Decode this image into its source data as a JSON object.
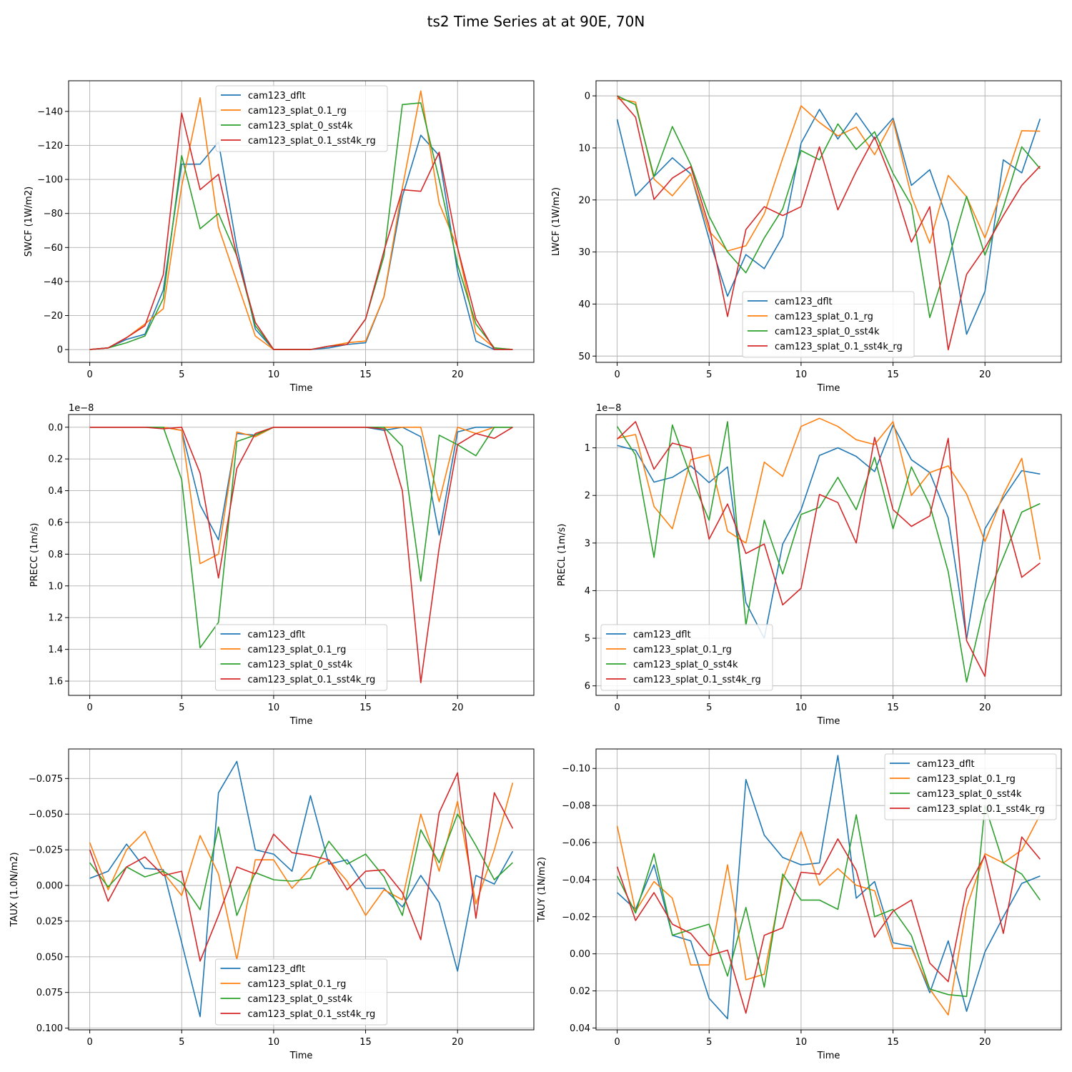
{
  "title": "ts2 Time Series at at 90E, 70N",
  "colors": {
    "cam123_dflt": "#1f77b4",
    "cam123_splat_0.1_rg": "#ff7f0e",
    "cam123_splat_0_sst4k": "#2ca02c",
    "cam123_splat_0.1_sst4k_rg": "#d62728"
  },
  "chart_data": [
    {
      "type": "line",
      "xlabel": "Time",
      "ylabel": "SWCF (1W/m2)",
      "xlim": [
        -1.15,
        24.15
      ],
      "ylim": [
        7.5,
        -158
      ],
      "xticks": [
        0,
        5,
        10,
        15,
        20
      ],
      "xtick_labels": [
        "0",
        "5",
        "10",
        "15",
        "20"
      ],
      "yticks": [
        0,
        -20,
        -40,
        -60,
        -80,
        -100,
        -120,
        -140
      ],
      "ytick_labels": [
        "0",
        "−20",
        "−40",
        "−60",
        "−80",
        "−100",
        "−120",
        "−140"
      ],
      "offset_label": "",
      "legend_loc": "upper-center",
      "x": [
        0,
        1,
        2,
        3,
        4,
        5,
        6,
        7,
        8,
        9,
        10,
        11,
        12,
        13,
        14,
        15,
        16,
        17,
        18,
        19,
        20,
        21,
        22,
        23
      ],
      "series": [
        {
          "name": "cam123_dflt",
          "values": [
            0,
            -1,
            -6,
            -9,
            -35,
            -109,
            -109,
            -122,
            -60,
            -12,
            0,
            0,
            0,
            -1,
            -3,
            -4,
            -31,
            -90,
            -126,
            -114,
            -46,
            -5,
            0,
            0
          ]
        },
        {
          "name": "cam123_splat_0.1_rg",
          "values": [
            0,
            -1,
            -7,
            -15,
            -24,
            -96,
            -148,
            -72,
            -40,
            -8,
            0,
            0,
            0,
            -2,
            -4,
            -5,
            -31,
            -95,
            -152,
            -86,
            -60,
            -10,
            -1,
            0
          ]
        },
        {
          "name": "cam123_splat_0_sst4k",
          "values": [
            0,
            -1,
            -4,
            -8,
            -30,
            -114,
            -71,
            -80,
            -55,
            -14,
            0,
            0,
            0,
            -2,
            -3,
            -18,
            -55,
            -144,
            -145,
            -100,
            -50,
            -15,
            -1,
            0
          ]
        },
        {
          "name": "cam123_splat_0.1_sst4k_rg",
          "values": [
            0,
            -1,
            -7,
            -14,
            -44,
            -139,
            -94,
            -103,
            -55,
            -16,
            0,
            0,
            0,
            -2,
            -3,
            -18,
            -58,
            -94,
            -93,
            -116,
            -60,
            -18,
            0,
            0
          ]
        }
      ]
    },
    {
      "type": "line",
      "xlabel": "Time",
      "ylabel": "LWCF (1W/m2)",
      "xlim": [
        -1.15,
        24.15
      ],
      "ylim": [
        51.2,
        -2.9
      ],
      "xticks": [
        0,
        5,
        10,
        15,
        20
      ],
      "xtick_labels": [
        "0",
        "5",
        "10",
        "15",
        "20"
      ],
      "yticks": [
        0,
        10,
        20,
        30,
        40,
        50
      ],
      "ytick_labels": [
        "0",
        "10",
        "20",
        "30",
        "40",
        "50"
      ],
      "offset_label": "",
      "legend_loc": "lower-center",
      "x": [
        0,
        1,
        2,
        3,
        4,
        5,
        6,
        7,
        8,
        9,
        10,
        11,
        12,
        13,
        14,
        15,
        16,
        17,
        18,
        19,
        20,
        21,
        22,
        23
      ],
      "series": [
        {
          "name": "cam123_dflt",
          "values": [
            4.5,
            19.2,
            15.5,
            11.9,
            15.0,
            27.5,
            38.5,
            30.5,
            33.2,
            27.0,
            9.1,
            2.6,
            8.3,
            3.3,
            8.3,
            4.3,
            17.2,
            14.2,
            24.2,
            45.8,
            37.6,
            12.3,
            14.8,
            4.4
          ]
        },
        {
          "name": "cam123_splat_0.1_rg",
          "values": [
            0.5,
            1.2,
            16.0,
            19.2,
            15.0,
            26.0,
            29.8,
            28.8,
            22.7,
            12.0,
            1.9,
            5.1,
            7.7,
            6.0,
            11.3,
            4.7,
            19.3,
            28.3,
            15.3,
            19.4,
            27.3,
            17.4,
            6.7,
            6.8
          ]
        },
        {
          "name": "cam123_splat_0_sst4k",
          "values": [
            0,
            1.7,
            15.5,
            5.9,
            13.2,
            23.1,
            30.0,
            34.0,
            27.3,
            21.7,
            10.5,
            12.3,
            5.4,
            10.3,
            6.9,
            14.9,
            21.0,
            42.6,
            31.5,
            19.3,
            30.6,
            21.4,
            9.8,
            14.0
          ]
        },
        {
          "name": "cam123_splat_0.1_sst4k_rg",
          "values": [
            0,
            4.1,
            19.9,
            15.8,
            13.6,
            25.0,
            42.4,
            25.7,
            21.3,
            23.0,
            21.3,
            9.8,
            21.9,
            14.5,
            7.9,
            16.8,
            28.1,
            21.3,
            48.8,
            34.3,
            29.2,
            23.0,
            17.2,
            13.5
          ]
        }
      ]
    },
    {
      "type": "line",
      "xlabel": "Time",
      "ylabel": "PRECC (1m/s)",
      "xlim": [
        -1.15,
        24.15
      ],
      "ylim": [
        1.69,
        -0.08
      ],
      "xticks": [
        0,
        5,
        10,
        15,
        20
      ],
      "xtick_labels": [
        "0",
        "5",
        "10",
        "15",
        "20"
      ],
      "yticks": [
        0.0,
        0.2,
        0.4,
        0.6,
        0.8,
        1.0,
        1.2,
        1.4,
        1.6
      ],
      "ytick_labels": [
        "0.0",
        "0.2",
        "0.4",
        "0.6",
        "0.8",
        "1.0",
        "1.2",
        "1.4",
        "1.6"
      ],
      "offset_label": "1e−8",
      "legend_loc": "lower-center",
      "x": [
        0,
        1,
        2,
        3,
        4,
        5,
        6,
        7,
        8,
        9,
        10,
        11,
        12,
        13,
        14,
        15,
        16,
        17,
        18,
        19,
        20,
        21,
        22,
        23
      ],
      "series": [
        {
          "name": "cam123_dflt",
          "values": [
            0,
            0,
            0,
            0,
            0,
            0.02,
            0.49,
            0.71,
            0.04,
            0.05,
            0,
            0,
            0,
            0,
            0,
            0,
            0.02,
            0,
            0.06,
            0.68,
            0.03,
            0,
            0,
            0
          ]
        },
        {
          "name": "cam123_splat_0.1_rg",
          "values": [
            0,
            0,
            0,
            0,
            0,
            0.02,
            0.86,
            0.8,
            0.03,
            0.06,
            0,
            0,
            0,
            0,
            0,
            0,
            0,
            0,
            0,
            0.47,
            0,
            0.04,
            0,
            0
          ]
        },
        {
          "name": "cam123_splat_0_sst4k",
          "values": [
            0,
            0,
            0,
            0,
            0,
            0.33,
            1.39,
            1.23,
            0.09,
            0.05,
            0,
            0,
            0,
            0,
            0,
            0,
            0,
            0.12,
            0.97,
            0.05,
            0.11,
            0.18,
            0,
            0
          ]
        },
        {
          "name": "cam123_splat_0.1_sst4k_rg",
          "values": [
            0,
            0,
            0,
            0,
            0.01,
            0,
            0.29,
            0.95,
            0.26,
            0.04,
            0,
            0,
            0,
            0,
            0,
            0,
            0.01,
            0.4,
            1.61,
            0.76,
            0.11,
            0.04,
            0.07,
            0
          ]
        }
      ]
    },
    {
      "type": "line",
      "xlabel": "Time",
      "ylabel": "PRECL (1m/s)",
      "xlim": [
        -1.15,
        24.15
      ],
      "ylim": [
        6.2,
        0.3
      ],
      "xticks": [
        0,
        5,
        10,
        15,
        20
      ],
      "xtick_labels": [
        "0",
        "5",
        "10",
        "15",
        "20"
      ],
      "yticks": [
        1,
        2,
        3,
        4,
        5,
        6
      ],
      "ytick_labels": [
        "1",
        "2",
        "3",
        "4",
        "5",
        "6"
      ],
      "offset_label": "1e−8",
      "legend_loc": "lower-left",
      "x": [
        0,
        1,
        2,
        3,
        4,
        5,
        6,
        7,
        8,
        9,
        10,
        11,
        12,
        13,
        14,
        15,
        16,
        17,
        18,
        19,
        20,
        21,
        22,
        23
      ],
      "series": [
        {
          "name": "cam123_dflt",
          "values": [
            0.95,
            1.05,
            1.72,
            1.62,
            1.38,
            1.73,
            1.4,
            4.25,
            5.0,
            3.02,
            2.3,
            1.16,
            1.0,
            1.18,
            1.5,
            0.52,
            1.25,
            1.52,
            2.47,
            5.02,
            2.7,
            2.05,
            1.48,
            1.55
          ]
        },
        {
          "name": "cam123_splat_0.1_rg",
          "values": [
            0.8,
            0.72,
            2.23,
            2.7,
            1.25,
            1.15,
            2.75,
            3.0,
            1.3,
            1.6,
            0.55,
            0.38,
            0.55,
            0.83,
            0.93,
            0.45,
            2.0,
            1.52,
            1.38,
            1.97,
            2.97,
            1.98,
            1.22,
            3.35
          ]
        },
        {
          "name": "cam123_splat_0_sst4k",
          "values": [
            0.55,
            1.15,
            3.3,
            0.52,
            1.6,
            2.52,
            0.45,
            4.73,
            2.52,
            3.65,
            2.4,
            2.25,
            1.62,
            2.3,
            1.2,
            2.7,
            1.4,
            2.2,
            3.6,
            5.92,
            4.25,
            3.3,
            2.35,
            2.17
          ]
        },
        {
          "name": "cam123_splat_0.1_sst4k_rg",
          "values": [
            0.82,
            0.45,
            1.45,
            0.9,
            1.0,
            2.92,
            2.18,
            3.22,
            3.02,
            4.3,
            3.95,
            1.98,
            2.15,
            3.0,
            0.78,
            2.3,
            2.65,
            2.43,
            0.8,
            5.05,
            5.8,
            2.3,
            3.72,
            3.42
          ]
        }
      ]
    },
    {
      "type": "line",
      "xlabel": "Time",
      "ylabel": "TAUX (1.0N/m2)",
      "xlim": [
        -1.15,
        24.15
      ],
      "ylim": [
        0.1012,
        -0.0957
      ],
      "xticks": [
        0,
        5,
        10,
        15,
        20
      ],
      "xtick_labels": [
        "0",
        "5",
        "10",
        "15",
        "20"
      ],
      "yticks": [
        -0.075,
        -0.05,
        -0.025,
        0.0,
        0.025,
        0.05,
        0.075,
        0.1
      ],
      "ytick_labels": [
        "−0.075",
        "−0.050",
        "−0.025",
        "0.000",
        "0.025",
        "0.050",
        "0.075",
        "0.100"
      ],
      "offset_label": "",
      "legend_loc": "lower-center",
      "x": [
        0,
        1,
        2,
        3,
        4,
        5,
        6,
        7,
        8,
        9,
        10,
        11,
        12,
        13,
        14,
        15,
        16,
        17,
        18,
        19,
        20,
        21,
        22,
        23
      ],
      "series": [
        {
          "name": "cam123_dflt",
          "values": [
            -0.005,
            -0.01,
            -0.029,
            -0.012,
            -0.011,
            0.04,
            0.092,
            -0.065,
            -0.087,
            -0.025,
            -0.022,
            -0.01,
            -0.063,
            -0.015,
            -0.018,
            0.002,
            0.002,
            0.015,
            -0.007,
            0.012,
            0.06,
            -0.007,
            -0.001,
            -0.024
          ]
        },
        {
          "name": "cam123_splat_0.1_rg",
          "values": [
            -0.03,
            0.003,
            -0.025,
            -0.038,
            -0.009,
            0.007,
            -0.035,
            -0.008,
            0.052,
            -0.018,
            -0.018,
            0.002,
            -0.012,
            -0.018,
            -0.003,
            0.021,
            0.003,
            0.01,
            -0.05,
            -0.01,
            -0.059,
            0.013,
            -0.025,
            -0.072
          ]
        },
        {
          "name": "cam123_splat_0_sst4k",
          "values": [
            -0.016,
            0.001,
            -0.013,
            -0.006,
            -0.01,
            -0.002,
            0.017,
            -0.041,
            0.021,
            -0.009,
            -0.004,
            -0.003,
            -0.005,
            -0.031,
            -0.015,
            -0.022,
            -0.006,
            0.021,
            -0.039,
            -0.016,
            -0.05,
            -0.028,
            -0.004,
            -0.016
          ]
        },
        {
          "name": "cam123_splat_0.1_sst4k_rg",
          "values": [
            -0.025,
            0.011,
            -0.013,
            -0.02,
            -0.007,
            -0.01,
            0.053,
            0.021,
            -0.013,
            -0.008,
            -0.036,
            -0.023,
            -0.021,
            -0.018,
            0.003,
            -0.01,
            -0.011,
            0.005,
            0.038,
            -0.051,
            -0.079,
            0.023,
            -0.065,
            -0.04
          ]
        }
      ]
    },
    {
      "type": "line",
      "xlabel": "Time",
      "ylabel": "TAUY (1N/m2)",
      "xlim": [
        -1.15,
        24.15
      ],
      "ylim": [
        0.041,
        -0.1105
      ],
      "xticks": [
        0,
        5,
        10,
        15,
        20
      ],
      "xtick_labels": [
        "0",
        "5",
        "10",
        "15",
        "20"
      ],
      "yticks": [
        -0.1,
        -0.08,
        -0.06,
        -0.04,
        -0.02,
        0.0,
        0.02,
        0.04
      ],
      "ytick_labels": [
        "−0.10",
        "−0.08",
        "−0.06",
        "−0.04",
        "−0.02",
        "0.00",
        "0.02",
        "0.04"
      ],
      "offset_label": "",
      "legend_loc": "upper-right",
      "x": [
        0,
        1,
        2,
        3,
        4,
        5,
        6,
        7,
        8,
        9,
        10,
        11,
        12,
        13,
        14,
        15,
        16,
        17,
        18,
        19,
        20,
        21,
        22,
        23
      ],
      "series": [
        {
          "name": "cam123_dflt",
          "values": [
            -0.033,
            -0.024,
            -0.048,
            -0.01,
            -0.007,
            0.024,
            0.035,
            -0.094,
            -0.064,
            -0.052,
            -0.048,
            -0.049,
            -0.107,
            -0.03,
            -0.039,
            -0.006,
            -0.004,
            0.021,
            -0.007,
            0.031,
            -0.001,
            -0.02,
            -0.038,
            -0.042
          ]
        },
        {
          "name": "cam123_splat_0.1_rg",
          "values": [
            -0.069,
            -0.023,
            -0.039,
            -0.03,
            0.006,
            0.006,
            -0.048,
            0.014,
            0.011,
            -0.04,
            -0.066,
            -0.037,
            -0.046,
            -0.037,
            -0.034,
            -0.003,
            -0.003,
            0.019,
            0.033,
            -0.025,
            -0.054,
            -0.049,
            -0.056,
            -0.075
          ]
        },
        {
          "name": "cam123_splat_0_sst4k",
          "values": [
            -0.042,
            -0.022,
            -0.054,
            -0.01,
            -0.013,
            -0.016,
            0.012,
            -0.025,
            0.018,
            -0.043,
            -0.029,
            -0.029,
            -0.024,
            -0.075,
            -0.02,
            -0.024,
            -0.01,
            0.019,
            0.022,
            0.023,
            -0.08,
            -0.049,
            -0.043,
            -0.029
          ]
        },
        {
          "name": "cam123_splat_0.1_sst4k_rg",
          "values": [
            -0.047,
            -0.018,
            -0.033,
            -0.016,
            -0.011,
            0.001,
            -0.002,
            0.032,
            -0.01,
            -0.014,
            -0.044,
            -0.043,
            -0.062,
            -0.045,
            -0.009,
            -0.023,
            -0.029,
            0.005,
            0.015,
            -0.035,
            -0.053,
            -0.011,
            -0.063,
            -0.051
          ]
        }
      ]
    }
  ]
}
